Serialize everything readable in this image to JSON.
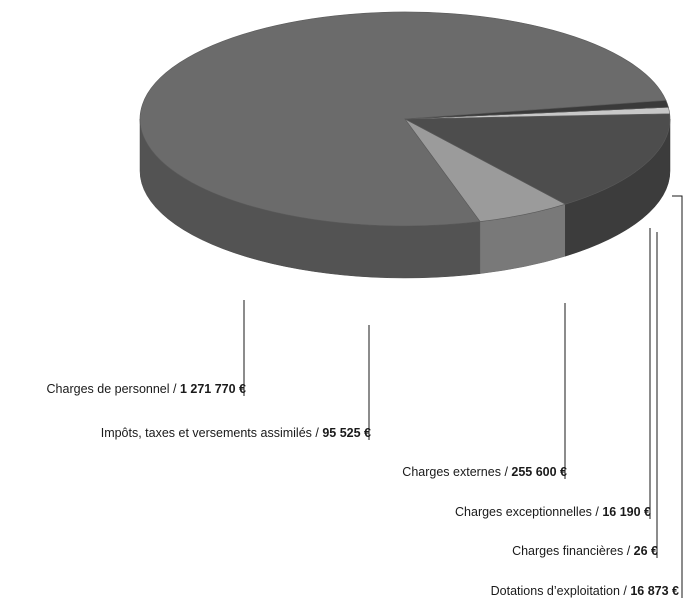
{
  "chart_data": {
    "type": "pie",
    "style": "3d",
    "currency": "€",
    "slices": [
      {
        "label": "Charges de personnel",
        "value": 1271770,
        "value_text": "1 271 770 €",
        "color": "#6b6b6b"
      },
      {
        "label": "Impôts, taxes et versements assimilés",
        "value": 95525,
        "value_text": "95 525 €",
        "color": "#9b9b9b"
      },
      {
        "label": "Charges externes",
        "value": 255600,
        "value_text": "255 600 €",
        "color": "#4d4d4d"
      },
      {
        "label": "Charges exceptionnelles",
        "value": 16190,
        "value_text": "16 190 €",
        "color": "#c8c8c8"
      },
      {
        "label": "Charges financières",
        "value": 26,
        "value_text": "26 €",
        "color": "#8a8a8a"
      },
      {
        "label": "Dotations d’exploitation",
        "value": 16873,
        "value_text": "16 873 €",
        "color": "#3a3a3a"
      }
    ]
  }
}
